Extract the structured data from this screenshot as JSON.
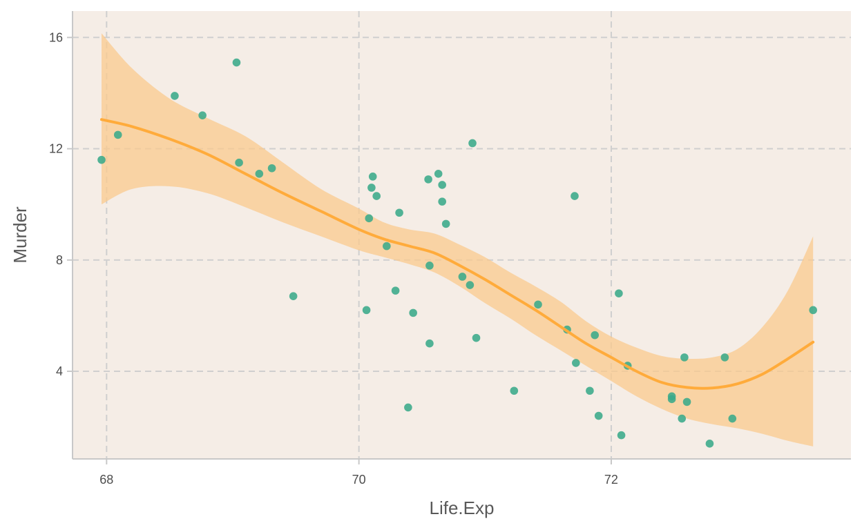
{
  "chart_data": {
    "type": "scatter",
    "title": "",
    "xlabel": "Life.Exp",
    "ylabel": "Murder",
    "xlim": [
      67.73,
      73.9
    ],
    "ylim": [
      0.85,
      16.95
    ],
    "x_ticks": [
      68,
      70,
      72
    ],
    "y_ticks": [
      4,
      8,
      12,
      16
    ],
    "x_tick_labels": [
      "68",
      "70",
      "72"
    ],
    "y_tick_labels": [
      "4",
      "8",
      "12",
      "16"
    ],
    "grid": true,
    "legend": "none",
    "colors": {
      "panel_background": "#f5ede6",
      "point": "#3aaa8a",
      "smooth_line": "#ffab3b",
      "confidence_band": "#f9c98e"
    },
    "points": [
      {
        "x": 67.96,
        "y": 11.6
      },
      {
        "x": 68.09,
        "y": 12.5
      },
      {
        "x": 68.54,
        "y": 13.9
      },
      {
        "x": 68.76,
        "y": 13.2
      },
      {
        "x": 69.03,
        "y": 15.1
      },
      {
        "x": 69.05,
        "y": 11.5
      },
      {
        "x": 69.21,
        "y": 11.1
      },
      {
        "x": 69.31,
        "y": 11.3
      },
      {
        "x": 69.48,
        "y": 6.7
      },
      {
        "x": 70.06,
        "y": 6.2
      },
      {
        "x": 70.08,
        "y": 9.5
      },
      {
        "x": 70.1,
        "y": 10.6
      },
      {
        "x": 70.11,
        "y": 11.0
      },
      {
        "x": 70.14,
        "y": 10.3
      },
      {
        "x": 70.22,
        "y": 8.5
      },
      {
        "x": 70.29,
        "y": 6.9
      },
      {
        "x": 70.32,
        "y": 9.7
      },
      {
        "x": 70.39,
        "y": 2.7
      },
      {
        "x": 70.43,
        "y": 6.1
      },
      {
        "x": 70.55,
        "y": 10.9
      },
      {
        "x": 70.56,
        "y": 7.8
      },
      {
        "x": 70.56,
        "y": 5.0
      },
      {
        "x": 70.63,
        "y": 11.1
      },
      {
        "x": 70.66,
        "y": 10.7
      },
      {
        "x": 70.66,
        "y": 10.1
      },
      {
        "x": 70.69,
        "y": 9.3
      },
      {
        "x": 70.82,
        "y": 7.4
      },
      {
        "x": 70.88,
        "y": 7.1
      },
      {
        "x": 70.9,
        "y": 12.2
      },
      {
        "x": 70.93,
        "y": 5.2
      },
      {
        "x": 71.23,
        "y": 3.3
      },
      {
        "x": 71.42,
        "y": 6.4
      },
      {
        "x": 71.65,
        "y": 5.5
      },
      {
        "x": 71.71,
        "y": 10.3
      },
      {
        "x": 71.72,
        "y": 4.3
      },
      {
        "x": 71.83,
        "y": 3.3
      },
      {
        "x": 71.87,
        "y": 5.3
      },
      {
        "x": 71.9,
        "y": 2.4
      },
      {
        "x": 72.06,
        "y": 6.8
      },
      {
        "x": 72.08,
        "y": 1.7
      },
      {
        "x": 72.13,
        "y": 4.2
      },
      {
        "x": 72.48,
        "y": 3.1
      },
      {
        "x": 72.48,
        "y": 3.0
      },
      {
        "x": 72.56,
        "y": 2.3
      },
      {
        "x": 72.58,
        "y": 4.5
      },
      {
        "x": 72.6,
        "y": 2.9
      },
      {
        "x": 72.78,
        "y": 1.4
      },
      {
        "x": 72.9,
        "y": 4.5
      },
      {
        "x": 72.96,
        "y": 2.3
      },
      {
        "x": 73.6,
        "y": 6.2
      }
    ],
    "smooth": {
      "method": "loess",
      "x": [
        67.96,
        68.2,
        68.5,
        68.8,
        69.1,
        69.4,
        69.7,
        70.0,
        70.2,
        70.4,
        70.6,
        70.8,
        71.0,
        71.2,
        71.4,
        71.6,
        71.8,
        72.0,
        72.2,
        72.4,
        72.6,
        72.8,
        73.0,
        73.2,
        73.4,
        73.6
      ],
      "y": [
        13.05,
        12.8,
        12.35,
        11.8,
        11.1,
        10.4,
        9.75,
        9.1,
        8.75,
        8.5,
        8.25,
        7.8,
        7.3,
        6.75,
        6.2,
        5.6,
        5.0,
        4.5,
        4.0,
        3.6,
        3.42,
        3.4,
        3.55,
        3.9,
        4.45,
        5.05
      ],
      "lower": [
        10.0,
        10.55,
        10.65,
        10.4,
        9.9,
        9.35,
        8.85,
        8.35,
        8.1,
        7.85,
        7.55,
        7.05,
        6.45,
        5.9,
        5.3,
        4.75,
        4.2,
        3.65,
        3.1,
        2.65,
        2.3,
        2.1,
        1.95,
        1.75,
        1.5,
        1.3
      ],
      "upper": [
        16.15,
        14.9,
        13.8,
        13.1,
        12.45,
        11.5,
        10.55,
        9.85,
        9.35,
        9.1,
        8.95,
        8.55,
        8.1,
        7.55,
        7.05,
        6.5,
        5.8,
        5.25,
        4.85,
        4.55,
        4.45,
        4.5,
        4.8,
        5.6,
        6.9,
        8.85
      ]
    }
  }
}
